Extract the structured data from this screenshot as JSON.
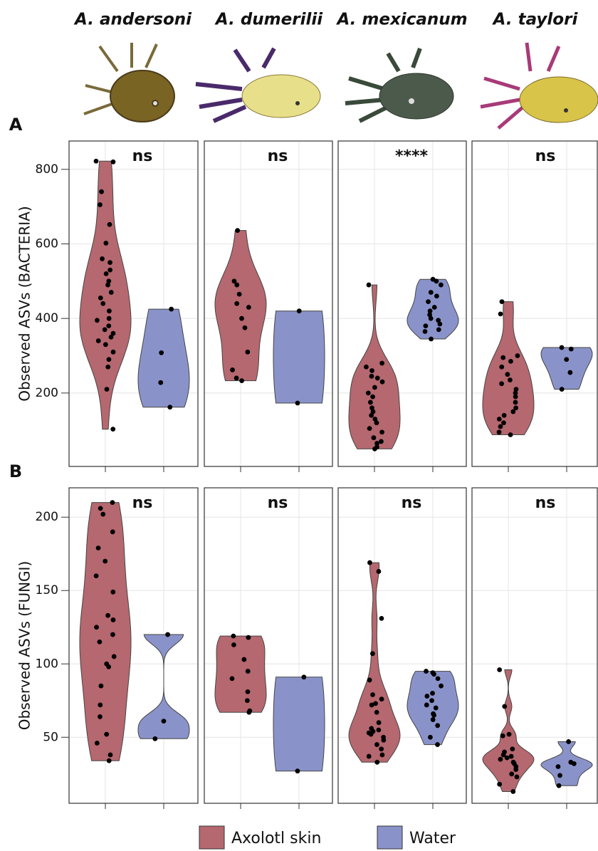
{
  "facet_titles": [
    "A. andersoni",
    "A. dumerilii",
    "A. mexicanum",
    "A. taylori"
  ],
  "chart_data": [
    {
      "type": "violin",
      "label": "A",
      "ylabel": "Observed ASVs (BACTERIA)",
      "ylim": [
        3,
        876
      ],
      "yticks": [
        200,
        400,
        600,
        800
      ],
      "grid": true,
      "annotations": [
        "ns",
        "ns",
        "****",
        "ns"
      ],
      "series": [
        {
          "name": "Axolotl skin",
          "color": "#b5686f",
          "values": [
            [
              822,
              820,
              740,
              705,
              652,
              602,
              560,
              550,
              530,
              520,
              500,
              490,
              470,
              455,
              440,
              420,
              400,
              395,
              380,
              370,
              360,
              350,
              340,
              330,
              310,
              290,
              270,
              210,
              103
            ],
            [
              636,
              500,
              490,
              465,
              440,
              430,
              400,
              375,
              310,
              262,
              240,
              233
            ],
            [
              490,
              280,
              270,
              260,
              245,
              240,
              230,
              215,
              200,
              190,
              175,
              160,
              150,
              140,
              130,
              120,
              105,
              95,
              80,
              70,
              65,
              55,
              50
            ],
            [
              445,
              412,
              300,
              295,
              285,
              270,
              250,
              235,
              225,
              210,
              200,
              190,
              175,
              160,
              150,
              140,
              130,
              120,
              110,
              95,
              88
            ]
          ]
        },
        {
          "name": "Water",
          "color": "#8a93c9",
          "values": [
            [
              425,
              308,
              228,
              162
            ],
            [
              420,
              173
            ],
            [
              505,
              500,
              490,
              470,
              460,
              445,
              430,
              420,
              410,
              400,
              395,
              385,
              380,
              370,
              365,
              345
            ],
            [
              322,
              318,
              290,
              255,
              210
            ]
          ]
        }
      ]
    },
    {
      "type": "violin",
      "label": "B",
      "ylabel": "Observed ASVs (FUNGI)",
      "ylim": [
        5,
        220
      ],
      "yticks": [
        50,
        100,
        150,
        200
      ],
      "grid": true,
      "annotations": [
        "ns",
        "ns",
        "ns",
        "ns"
      ],
      "series": [
        {
          "name": "Axolotl skin",
          "color": "#b5686f",
          "values": [
            [
              210,
              206,
              202,
              190,
              179,
              170,
              160,
              149,
              133,
              130,
              125,
              120,
              115,
              105,
              100,
              98,
              85,
              72,
              64,
              52,
              46,
              38,
              34
            ],
            [
              119,
              118,
              113,
              103,
              95,
              90,
              81,
              75,
              68,
              67
            ],
            [
              169,
              163,
              131,
              107,
              89,
              79,
              76,
              73,
              72,
              67,
              60,
              56,
              55,
              54,
              53,
              52,
              50,
              48,
              45,
              42,
              38,
              37,
              33
            ],
            [
              96,
              71,
              52,
              51,
              42,
              40,
              38,
              37,
              36,
              35,
              33,
              32,
              30,
              28,
              25,
              23,
              18,
              13
            ]
          ]
        },
        {
          "name": "Water",
          "color": "#8a93c9",
          "values": [
            [
              120,
              61,
              49
            ],
            [
              91,
              27
            ],
            [
              95,
              94,
              93,
              90,
              85,
              80,
              78,
              75,
              72,
              70,
              66,
              65,
              62,
              58,
              50,
              45
            ],
            [
              47,
              33,
              32,
              30,
              24,
              17
            ]
          ]
        }
      ]
    }
  ]
}
